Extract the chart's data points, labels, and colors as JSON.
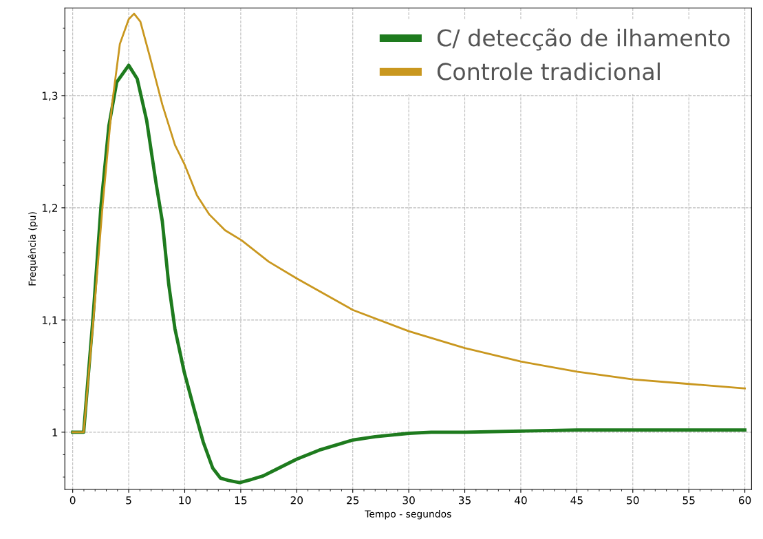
{
  "chart_data": {
    "type": "line",
    "xlabel": "Tempo - segundos",
    "ylabel": "Frequência (pu)",
    "xlim": [
      -0.7,
      60.6
    ],
    "ylim": [
      0.949,
      1.378
    ],
    "xticks": [
      0,
      5,
      10,
      15,
      20,
      25,
      30,
      35,
      40,
      45,
      50,
      55,
      60
    ],
    "yticks": [
      1,
      {
        "value": 1.1,
        "label": "1,1"
      },
      {
        "value": 1.2,
        "label": "1,2"
      },
      {
        "value": 1.3,
        "label": "1,3"
      }
    ],
    "grid": true,
    "legend": "top right",
    "line_style": "solid",
    "marker": "none",
    "series": [
      {
        "name": "C/ detecção de ilhamento",
        "color": "#1e7b1e",
        "x": [
          0,
          0.98,
          1.83,
          2.53,
          3.23,
          3.93,
          5.0,
          5.76,
          6.6,
          7.44,
          8.0,
          8.57,
          9.13,
          9.97,
          10.8,
          11.66,
          12.5,
          13.2,
          13.9,
          14.9,
          16,
          17,
          18,
          20,
          22,
          24,
          25,
          27,
          30,
          32,
          35,
          40,
          45,
          60
        ],
        "values": [
          1,
          1,
          1.104,
          1.202,
          1.273,
          1.312,
          1.327,
          1.315,
          1.278,
          1.222,
          1.188,
          1.132,
          1.092,
          1.053,
          1.022,
          0.991,
          0.968,
          0.959,
          0.957,
          0.955,
          0.958,
          0.961,
          0.966,
          0.976,
          0.984,
          0.99,
          0.993,
          0.996,
          0.999,
          1.0,
          1.0,
          1.001,
          1.002,
          1.002
        ]
      },
      {
        "name": "Controle tradicional",
        "color": "#c9971f",
        "x": [
          0,
          0.98,
          1.83,
          2.67,
          3.51,
          4.21,
          5.0,
          5.48,
          6.04,
          6.88,
          8.0,
          9.13,
          9.97,
          11.1,
          12.2,
          13.6,
          15.08,
          17.5,
          20,
          25,
          30,
          35,
          40,
          45,
          50,
          55,
          60
        ],
        "values": [
          1,
          1,
          1.098,
          1.202,
          1.292,
          1.346,
          1.368,
          1.373,
          1.366,
          1.335,
          1.292,
          1.256,
          1.239,
          1.211,
          1.194,
          1.18,
          1.171,
          1.152,
          1.137,
          1.109,
          1.09,
          1.075,
          1.063,
          1.054,
          1.047,
          1.043,
          1.039
        ]
      }
    ]
  }
}
